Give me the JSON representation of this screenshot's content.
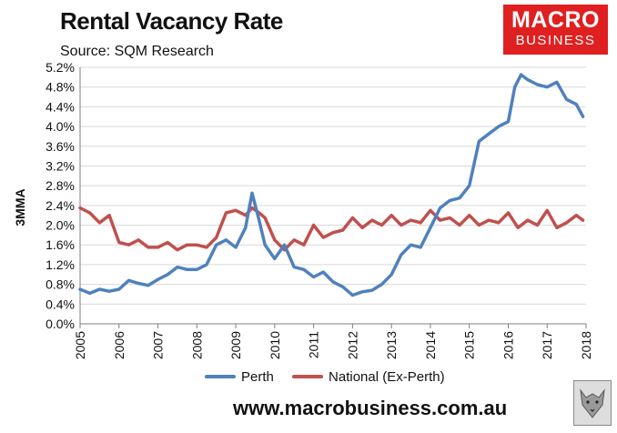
{
  "header": {
    "title": "Rental Vacancy Rate",
    "source": "Source: SQM Research",
    "logo_line1": "MACRO",
    "logo_line2": "BUSINESS"
  },
  "footer": {
    "url": "www.macrobusiness.com.au",
    "mascot_icon": "wolf-icon"
  },
  "colors": {
    "perth": "#4f81bd",
    "national": "#c0504d",
    "logo_bg": "#e02020"
  },
  "chart_data": {
    "type": "line",
    "title": "Rental Vacancy Rate",
    "subtitle": "Source: SQM Research",
    "ylabel": "3MMA",
    "xlabel": "",
    "ylim": [
      0,
      5.2
    ],
    "xlim": [
      2005,
      2018
    ],
    "y_ticks": [
      "0.0%",
      "0.4%",
      "0.8%",
      "1.2%",
      "1.6%",
      "2.0%",
      "2.4%",
      "2.8%",
      "3.2%",
      "3.6%",
      "4.0%",
      "4.4%",
      "4.8%",
      "5.2%"
    ],
    "x_ticks": [
      "2005",
      "2006",
      "2007",
      "2008",
      "2009",
      "2010",
      "2011",
      "2012",
      "2013",
      "2014",
      "2015",
      "2016",
      "2017",
      "2018"
    ],
    "grid": "horizontal",
    "legend": "bottom",
    "series": [
      {
        "name": "Perth",
        "x": [
          2005.0,
          2005.25,
          2005.5,
          2005.75,
          2006.0,
          2006.25,
          2006.5,
          2006.75,
          2007.0,
          2007.25,
          2007.5,
          2007.75,
          2008.0,
          2008.25,
          2008.5,
          2008.75,
          2009.0,
          2009.25,
          2009.42,
          2009.6,
          2009.75,
          2010.0,
          2010.25,
          2010.5,
          2010.75,
          2011.0,
          2011.25,
          2011.5,
          2011.75,
          2012.0,
          2012.25,
          2012.5,
          2012.75,
          2013.0,
          2013.25,
          2013.5,
          2013.75,
          2014.0,
          2014.25,
          2014.5,
          2014.75,
          2015.0,
          2015.25,
          2015.5,
          2015.75,
          2016.0,
          2016.17,
          2016.33,
          2016.5,
          2016.75,
          2017.0,
          2017.25,
          2017.5,
          2017.75,
          2017.92
        ],
        "values": [
          0.7,
          0.62,
          0.7,
          0.66,
          0.7,
          0.88,
          0.82,
          0.78,
          0.9,
          1.0,
          1.15,
          1.1,
          1.1,
          1.2,
          1.6,
          1.7,
          1.55,
          1.95,
          2.65,
          2.1,
          1.6,
          1.32,
          1.6,
          1.15,
          1.1,
          0.95,
          1.05,
          0.85,
          0.75,
          0.58,
          0.65,
          0.68,
          0.8,
          1.0,
          1.4,
          1.6,
          1.55,
          1.95,
          2.35,
          2.5,
          2.55,
          2.8,
          3.7,
          3.85,
          4.0,
          4.1,
          4.8,
          5.05,
          4.95,
          4.85,
          4.8,
          4.9,
          4.55,
          4.45,
          4.2
        ]
      },
      {
        "name": "National (Ex-Perth)",
        "x": [
          2005.0,
          2005.25,
          2005.5,
          2005.75,
          2006.0,
          2006.25,
          2006.5,
          2006.75,
          2007.0,
          2007.25,
          2007.5,
          2007.75,
          2008.0,
          2008.25,
          2008.5,
          2008.75,
          2009.0,
          2009.25,
          2009.42,
          2009.6,
          2009.75,
          2010.0,
          2010.25,
          2010.5,
          2010.75,
          2011.0,
          2011.25,
          2011.5,
          2011.75,
          2012.0,
          2012.25,
          2012.5,
          2012.75,
          2013.0,
          2013.25,
          2013.5,
          2013.75,
          2014.0,
          2014.25,
          2014.5,
          2014.75,
          2015.0,
          2015.25,
          2015.5,
          2015.75,
          2016.0,
          2016.25,
          2016.5,
          2016.75,
          2017.0,
          2017.25,
          2017.5,
          2017.75,
          2017.92
        ],
        "values": [
          2.35,
          2.25,
          2.05,
          2.2,
          1.65,
          1.6,
          1.7,
          1.55,
          1.55,
          1.65,
          1.5,
          1.6,
          1.6,
          1.55,
          1.75,
          2.25,
          2.3,
          2.2,
          2.35,
          2.25,
          2.15,
          1.7,
          1.5,
          1.7,
          1.6,
          2.0,
          1.75,
          1.85,
          1.9,
          2.15,
          1.95,
          2.1,
          2.0,
          2.2,
          2.0,
          2.1,
          2.05,
          2.3,
          2.1,
          2.15,
          2.0,
          2.2,
          2.0,
          2.1,
          2.05,
          2.25,
          1.95,
          2.1,
          2.0,
          2.3,
          1.95,
          2.05,
          2.2,
          2.1
        ]
      }
    ]
  }
}
